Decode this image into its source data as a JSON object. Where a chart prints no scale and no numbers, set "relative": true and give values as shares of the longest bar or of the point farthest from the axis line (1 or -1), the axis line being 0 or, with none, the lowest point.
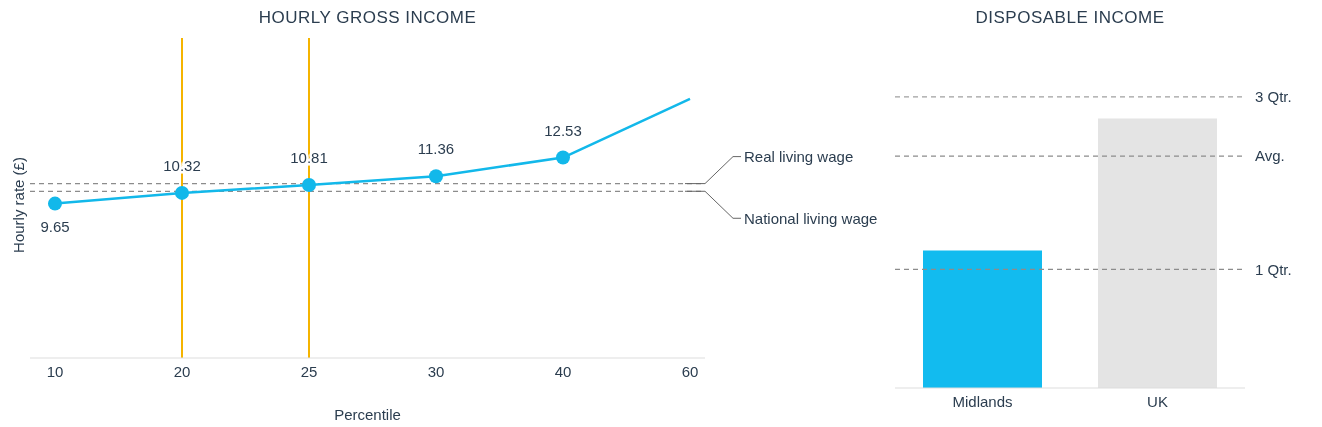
{
  "chart_data": [
    {
      "type": "line",
      "title": "HOURLY GROSS INCOME",
      "xlabel": "Percentile",
      "ylabel": "Hourly rate (£)",
      "categories": [
        "10",
        "20",
        "25",
        "30",
        "40",
        "60"
      ],
      "series": [
        {
          "color": "#12b8ea",
          "values": [
            9.65,
            10.32,
            10.81,
            11.36,
            12.53,
            16.2
          ],
          "value_labels": [
            "9.65",
            "10.32",
            "10.81",
            "11.36",
            "12.53",
            null
          ]
        }
      ],
      "tick_labels": "x",
      "marker": "circle",
      "line_style": "solid",
      "grid": false,
      "legend": false,
      "ref_lines": [
        {
          "axis": "y",
          "value": 10.9,
          "label": "Real living wage",
          "color": "#8c8c8c",
          "line_style": "dashed"
        },
        {
          "axis": "y",
          "value": 10.42,
          "label": "National living wage",
          "color": "#8c8c8c",
          "line_style": "dashed"
        },
        {
          "axis": "x",
          "value": "20",
          "color": "#f5b400",
          "line_style": "solid"
        },
        {
          "axis": "x",
          "value": "25",
          "color": "#f5b400",
          "line_style": "solid"
        }
      ]
    },
    {
      "type": "bar",
      "title": "DISPOSABLE INCOME",
      "categories": [
        "Midlands",
        "UK"
      ],
      "values": [
        0.51,
        1
      ],
      "colors": [
        "#12bbef",
        "#e4e4e4"
      ],
      "relative": true,
      "grid": false,
      "legend": false,
      "ref_lines": [
        {
          "axis": "y",
          "value": 1.08,
          "label": "3 Qtr.",
          "color": "#a0a0a0",
          "line_style": "dashed"
        },
        {
          "axis": "y",
          "value": 0.86,
          "label": "Avg.",
          "color": "#8c8c8c",
          "line_style": "dashed"
        },
        {
          "axis": "y",
          "value": 0.44,
          "label": "1 Qtr.",
          "color": "#8c8c8c",
          "line_style": "dashed"
        }
      ]
    }
  ]
}
